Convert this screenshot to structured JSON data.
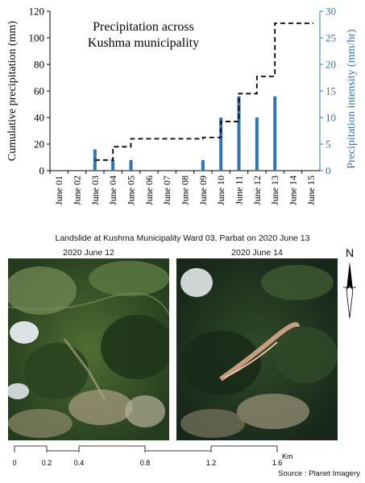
{
  "chart_data": {
    "type": "bar",
    "title": "Precipitation across\nKushma municipality",
    "categories": [
      "June 01",
      "June 02",
      "June 03",
      "June 04",
      "June 05",
      "June 06",
      "June 07",
      "June 08",
      "June 09",
      "June 10",
      "June 11",
      "June 12",
      "June 13",
      "June 14",
      "June 15"
    ],
    "ylabel_left": "Cumulative precipitation (mm)",
    "ylabel_right": "Precipitation intensity (mm/hr)",
    "ylim_left": [
      0,
      120
    ],
    "ylim_right": [
      0,
      30
    ],
    "yticks_left": [
      0,
      20,
      40,
      60,
      80,
      100,
      120
    ],
    "yticks_right": [
      0,
      5,
      10,
      15,
      20,
      25,
      30
    ],
    "grid": false,
    "series": [
      {
        "axis": "right",
        "kind": "bar",
        "color": "#2e75b6",
        "values": [
          0,
          0,
          4,
          2,
          2,
          0,
          0,
          0,
          2,
          10,
          14,
          10,
          14,
          0,
          0
        ]
      },
      {
        "axis": "left",
        "kind": "step-dashed",
        "color": "#000000",
        "values": [
          null,
          null,
          8,
          18,
          24,
          24,
          24,
          24,
          25,
          37,
          58,
          71,
          111,
          111,
          111
        ]
      }
    ]
  },
  "maps": {
    "title": "Landslide at Kushma Municipality Ward 03, Parbat on 2020 June 13",
    "left_label": "2020 June 12",
    "right_label": "2020 June 14",
    "north": "N",
    "scale_ticks": [
      "0",
      "0.2",
      "0.4",
      "0.8",
      "1.2",
      "1.6"
    ],
    "scale_unit": "Km",
    "source": "Source : Planet Imagery"
  }
}
